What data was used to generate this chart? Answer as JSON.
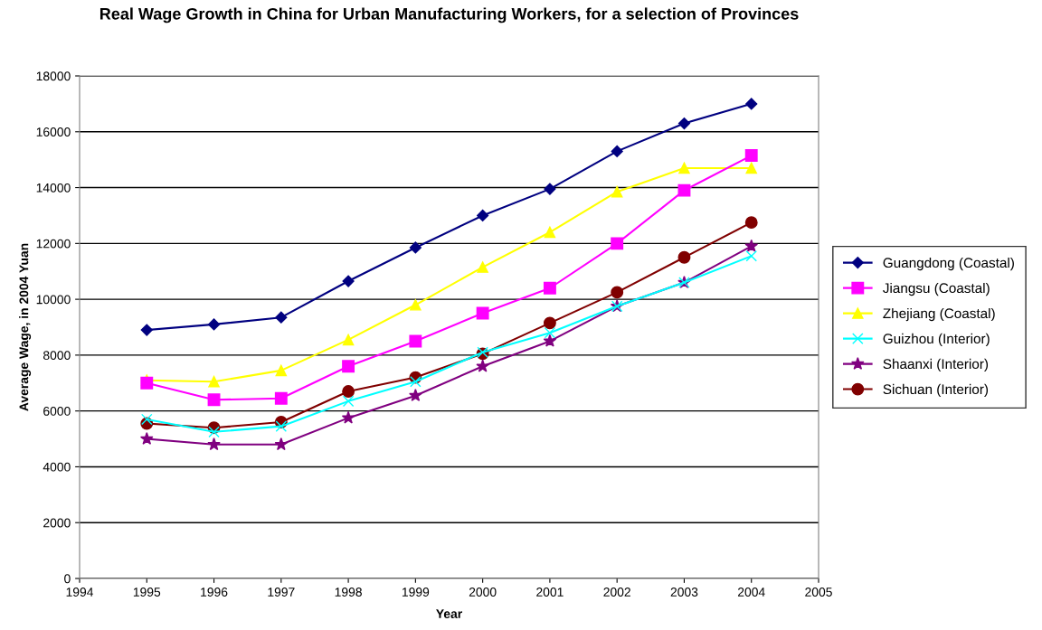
{
  "chart_data": {
    "type": "line",
    "title": "Real Wage Growth in China for Urban Manufacturing Workers, for a selection of Provinces",
    "xlabel": "Year",
    "ylabel": "Average Wage, in 2004 Yuan",
    "x": [
      1995,
      1996,
      1997,
      1998,
      1999,
      2000,
      2001,
      2002,
      2003,
      2004
    ],
    "series": [
      {
        "name": "Guangdong (Coastal)",
        "color": "#000080",
        "marker": "diamond",
        "values": [
          8900,
          9100,
          9350,
          10650,
          11850,
          13000,
          13950,
          15300,
          16300,
          17000
        ]
      },
      {
        "name": "Jiangsu (Coastal)",
        "color": "#ff00ff",
        "marker": "square",
        "values": [
          7000,
          6400,
          6450,
          7600,
          8500,
          9500,
          10400,
          12000,
          13900,
          15150
        ]
      },
      {
        "name": "Zhejiang (Coastal)",
        "color": "#ffff00",
        "marker": "triangle",
        "values": [
          7100,
          7050,
          7450,
          8550,
          9800,
          11150,
          12400,
          13850,
          14700,
          14700
        ]
      },
      {
        "name": "Guizhou (Interior)",
        "color": "#00ffff",
        "marker": "cross",
        "values": [
          5700,
          5250,
          5450,
          6350,
          7050,
          8100,
          8800,
          9750,
          10600,
          11550
        ]
      },
      {
        "name": "Shaanxi (Interior)",
        "color": "#800080",
        "marker": "star",
        "values": [
          5000,
          4800,
          4800,
          5750,
          6550,
          7600,
          8500,
          9750,
          10600,
          11900
        ]
      },
      {
        "name": "Sichuan (Interior)",
        "color": "#800000",
        "marker": "circle",
        "values": [
          5550,
          5400,
          5600,
          6700,
          7200,
          8050,
          9150,
          10250,
          11500,
          12750
        ]
      }
    ],
    "xlim": [
      1994,
      2005
    ],
    "xticks": [
      1994,
      1995,
      1996,
      1997,
      1998,
      1999,
      2000,
      2001,
      2002,
      2003,
      2004,
      2005
    ],
    "ylim": [
      0,
      18000
    ],
    "yticks": [
      0,
      2000,
      4000,
      6000,
      8000,
      10000,
      12000,
      14000,
      16000,
      18000
    ],
    "grid": "y",
    "legend": "right"
  }
}
